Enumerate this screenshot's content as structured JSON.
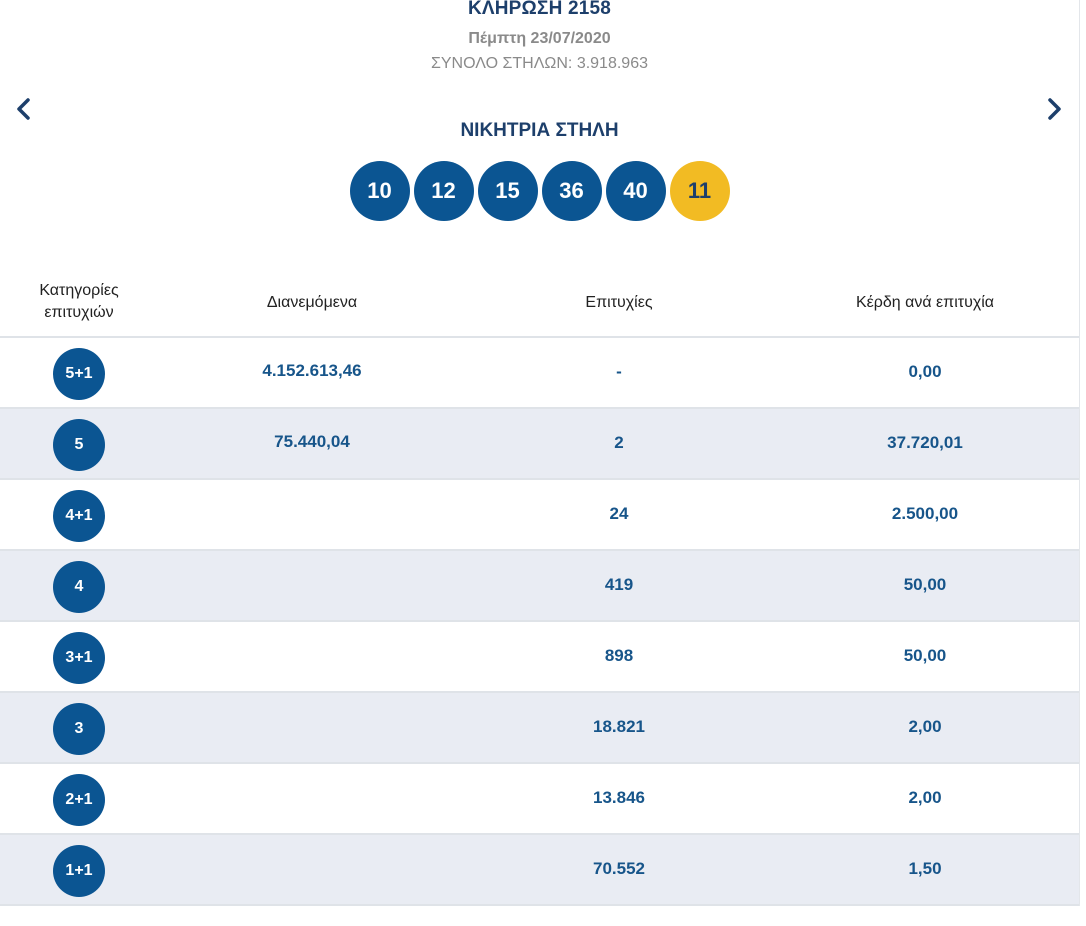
{
  "header": {
    "title": "ΚΛΗΡΩΣΗ 2158",
    "date": "Πέμπτη 23/07/2020",
    "total_columns": "ΣΥΝΟΛΟ ΣΤΗΛΩΝ: 3.918.963"
  },
  "nav": {
    "prev_icon": "chevron-left-icon",
    "next_icon": "chevron-right-icon"
  },
  "winning": {
    "label": "ΝΙΚΗΤΡΙΑ ΣΤΗΛΗ",
    "numbers": [
      "10",
      "12",
      "15",
      "36",
      "40"
    ],
    "bonus": "11"
  },
  "colors": {
    "primary": "#0b5592",
    "bonus": "#f2bb23",
    "title": "#1d3f6b",
    "row_alt": "#e9ecf3"
  },
  "table": {
    "headers": {
      "category": "Κατηγορίες επιτυχιών",
      "pool": "Διανεμόμενα",
      "winners": "Επιτυχίες",
      "prize": "Κέρδη ανά επιτυχία"
    },
    "rows": [
      {
        "category": "5+1",
        "pool": "4.152.613,46",
        "winners": "-",
        "prize": "0,00"
      },
      {
        "category": "5",
        "pool": "75.440,04",
        "winners": "2",
        "prize": "37.720,01"
      },
      {
        "category": "4+1",
        "pool": "",
        "winners": "24",
        "prize": "2.500,00"
      },
      {
        "category": "4",
        "pool": "",
        "winners": "419",
        "prize": "50,00"
      },
      {
        "category": "3+1",
        "pool": "",
        "winners": "898",
        "prize": "50,00"
      },
      {
        "category": "3",
        "pool": "",
        "winners": "18.821",
        "prize": "2,00"
      },
      {
        "category": "2+1",
        "pool": "",
        "winners": "13.846",
        "prize": "2,00"
      },
      {
        "category": "1+1",
        "pool": "",
        "winners": "70.552",
        "prize": "1,50"
      }
    ]
  }
}
